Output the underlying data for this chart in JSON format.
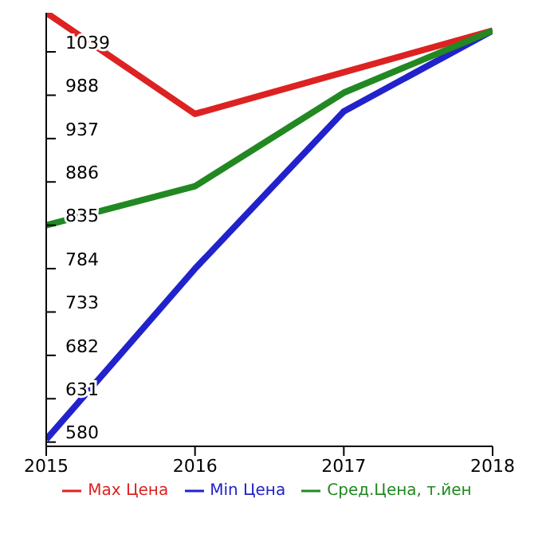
{
  "chart_data": {
    "type": "line",
    "x": [
      2015,
      2016,
      2017,
      2018
    ],
    "xlim": [
      2015,
      2018
    ],
    "xticks": [
      2015,
      2016,
      2017,
      2018
    ],
    "ylim": [
      575,
      1085
    ],
    "yticks": [
      580,
      631,
      682,
      733,
      784,
      835,
      886,
      937,
      988,
      1039
    ],
    "grid": false,
    "legend": "bottom",
    "series": [
      {
        "name": "Max Цена",
        "color": "#dd2222",
        "values": [
          1085,
          966,
          1015,
          1064
        ]
      },
      {
        "name": "Min Цена",
        "color": "#2222cc",
        "values": [
          583,
          784,
          969,
          1064
        ]
      },
      {
        "name": "Сред.Цена, т.йен",
        "color": "#228822",
        "values": [
          835,
          881,
          991,
          1064
        ]
      }
    ]
  }
}
